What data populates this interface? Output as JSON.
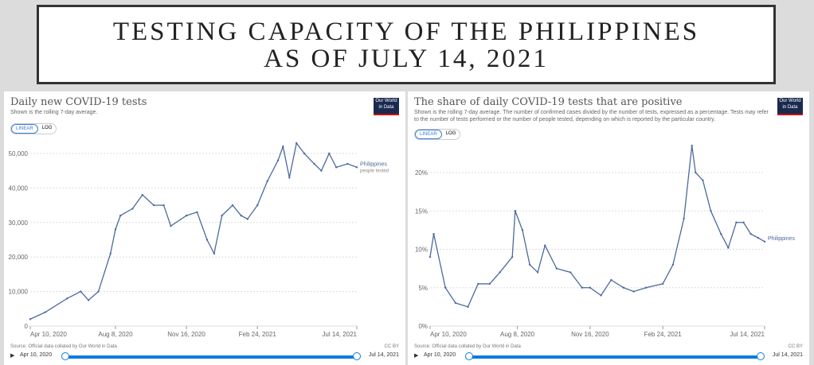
{
  "banner": {
    "line1": "TESTING CAPACITY OF THE PHILIPPINES",
    "line2": "AS OF JULY 14, 2021"
  },
  "colors": {
    "series": "#4c6a9c",
    "accent": "#0a7ae0"
  },
  "chart_data": [
    {
      "type": "line",
      "title": "Daily new COVID-19 tests",
      "subtitle": "Shown is the rolling 7-day average.",
      "logo": "Our World in Data",
      "toggle": [
        "LINEAR",
        "LOG"
      ],
      "series_label": "Philippines",
      "series_sublabel": "people tested",
      "yticks": [
        "0",
        "10,000",
        "20,000",
        "30,000",
        "40,000",
        "50,000"
      ],
      "ylim": [
        0,
        50000
      ],
      "xticks": [
        "Apr 10, 2020",
        "Aug 8, 2020",
        "Nov 16, 2020",
        "Feb 24, 2021",
        "Jul 14, 2021"
      ],
      "source": "Source: Official data collated by Our World in Data",
      "license": "CC BY",
      "timeline": {
        "start": "Apr 10, 2020",
        "end": "Jul 14, 2021"
      },
      "x": [
        "2020-04-10",
        "2020-05-01",
        "2020-06-01",
        "2020-06-20",
        "2020-07-01",
        "2020-07-15",
        "2020-08-01",
        "2020-08-08",
        "2020-08-15",
        "2020-09-01",
        "2020-09-15",
        "2020-10-01",
        "2020-10-15",
        "2020-10-25",
        "2020-11-16",
        "2020-12-01",
        "2020-12-15",
        "2020-12-25",
        "2021-01-05",
        "2021-01-20",
        "2021-02-01",
        "2021-02-10",
        "2021-02-24",
        "2021-03-10",
        "2021-03-25",
        "2021-04-01",
        "2021-04-10",
        "2021-04-20",
        "2021-05-01",
        "2021-05-15",
        "2021-05-25",
        "2021-06-05",
        "2021-06-15",
        "2021-07-01",
        "2021-07-14"
      ],
      "values": [
        2000,
        4000,
        8000,
        10000,
        7500,
        10000,
        21000,
        28000,
        32000,
        34000,
        38000,
        35000,
        35000,
        29000,
        32000,
        33000,
        25000,
        21000,
        32000,
        35000,
        32000,
        31000,
        35000,
        42000,
        48000,
        52000,
        43000,
        53000,
        50000,
        47000,
        45000,
        50000,
        46000,
        47000,
        46000
      ]
    },
    {
      "type": "line",
      "title": "The share of daily COVID-19 tests that are positive",
      "subtitle": "Shown is the rolling 7-day average. The number of confirmed cases divided by the number of tests, expressed as a percentage. Tests may refer to the number of tests performed or the number of people tested, depending on which is reported by the particular country.",
      "logo": "Our World in Data",
      "toggle": [
        "LINEAR",
        "LOG"
      ],
      "series_label": "Philippines",
      "yticks": [
        "0%",
        "5%",
        "10%",
        "15%",
        "20%"
      ],
      "ylim": [
        0,
        20
      ],
      "xticks": [
        "Apr 10, 2020",
        "Aug 8, 2020",
        "Nov 16, 2020",
        "Feb 24, 2021",
        "Jul 14, 2021"
      ],
      "source": "Source: Official data collated by Our World in Data",
      "license": "CC BY",
      "timeline": {
        "start": "Apr 10, 2020",
        "end": "Jul 14, 2021"
      },
      "x": [
        "2020-04-10",
        "2020-04-15",
        "2020-05-01",
        "2020-05-15",
        "2020-06-01",
        "2020-06-15",
        "2020-07-01",
        "2020-07-15",
        "2020-08-01",
        "2020-08-05",
        "2020-08-15",
        "2020-08-25",
        "2020-09-05",
        "2020-09-15",
        "2020-10-01",
        "2020-10-20",
        "2020-11-05",
        "2020-11-16",
        "2020-12-01",
        "2020-12-15",
        "2021-01-01",
        "2021-01-15",
        "2021-02-01",
        "2021-02-24",
        "2021-03-10",
        "2021-03-25",
        "2021-04-05",
        "2021-04-10",
        "2021-04-20",
        "2021-05-01",
        "2021-05-15",
        "2021-05-25",
        "2021-06-05",
        "2021-06-15",
        "2021-06-25",
        "2021-07-05",
        "2021-07-14"
      ],
      "values": [
        9,
        12,
        5,
        3,
        2.5,
        5.5,
        5.5,
        7,
        9,
        15,
        12.5,
        8,
        7,
        10.5,
        7.5,
        7,
        5,
        5,
        4,
        6,
        5,
        4.5,
        5,
        5.5,
        8,
        14,
        23.5,
        20,
        19,
        15,
        12,
        10.2,
        13.5,
        13.5,
        12,
        11.5,
        11
      ]
    }
  ]
}
